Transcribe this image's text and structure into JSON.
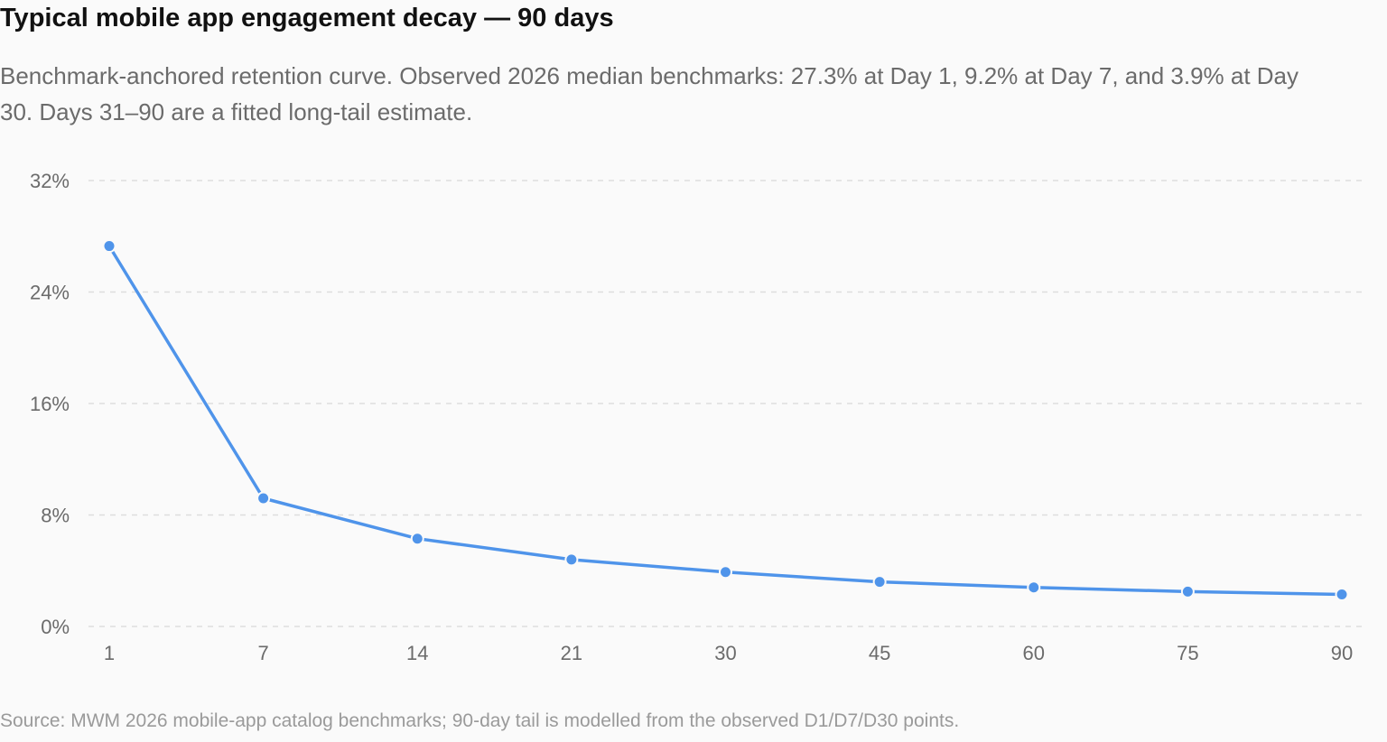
{
  "title": "Typical mobile app engagement decay — 90 days",
  "subtitle": "Benchmark-anchored retention curve. Observed 2026 median benchmarks: 27.3% at Day 1, 9.2% at Day 7, and 3.9% at Day 30. Days 31–90 are a fitted long-tail estimate.",
  "source": "Source: MWM 2026 mobile-app catalog benchmarks; 90-day tail is modelled from the observed D1/D7/D30 points.",
  "colors": {
    "line": "#4f94ea",
    "grid": "#dedede",
    "background": "#fafafa"
  },
  "chart_data": {
    "type": "line",
    "title": "Typical mobile app engagement decay — 90 days",
    "xlabel": "",
    "ylabel": "",
    "x_scale": "categorical",
    "categories": [
      "1",
      "7",
      "14",
      "21",
      "30",
      "45",
      "60",
      "75",
      "90"
    ],
    "series": [
      {
        "values": [
          27.3,
          9.2,
          6.3,
          4.8,
          3.9,
          3.2,
          2.8,
          2.5,
          2.3
        ]
      }
    ],
    "ylim": [
      0,
      32
    ],
    "yticks": [
      0,
      8,
      16,
      24,
      32
    ],
    "ytick_labels": [
      "0%",
      "8%",
      "16%",
      "24%",
      "32%"
    ],
    "grid": "horizontal dashed",
    "legend": "none"
  }
}
